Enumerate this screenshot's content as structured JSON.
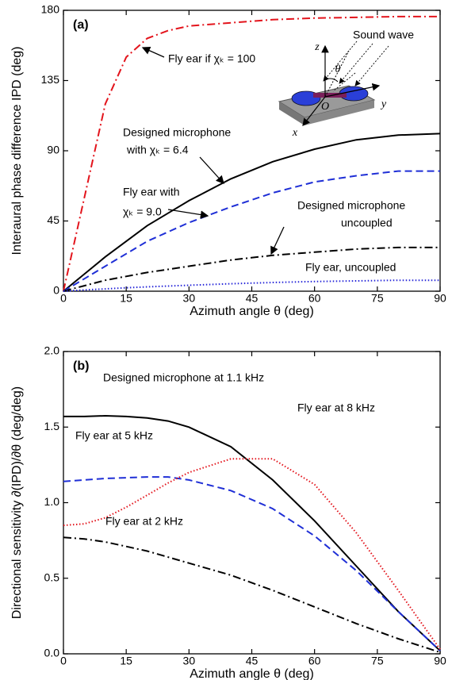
{
  "chart_data": [
    {
      "type": "line",
      "panel": "(a)",
      "x_label": "Azimuth angle θ (deg)",
      "y_label": "Interaural phase difference IPD (deg)",
      "xlim": [
        0,
        90
      ],
      "xticks": [
        0,
        15,
        30,
        45,
        60,
        75,
        90
      ],
      "ylim": [
        0,
        180
      ],
      "yticks": [
        0,
        45,
        90,
        135,
        180
      ],
      "x": [
        0,
        5,
        10,
        15,
        20,
        25,
        30,
        40,
        50,
        60,
        70,
        80,
        90
      ],
      "series": [
        {
          "label": [
            "Fly ear if χₖ = 100"
          ],
          "color": "#e3141c",
          "linestyle": "dash-dot",
          "values": [
            0,
            60,
            120,
            150,
            162,
            167,
            170,
            172,
            174,
            175,
            175.5,
            176,
            176
          ]
        },
        {
          "label": [
            "Designed microphone",
            "with χₖ = 6.4"
          ],
          "color": "#000000",
          "linestyle": "solid",
          "values": [
            0,
            11,
            22,
            32,
            42,
            50,
            58,
            72,
            83,
            91,
            97,
            100,
            101
          ]
        },
        {
          "label": [
            "Fly ear with",
            "χₖ = 9.0"
          ],
          "color": "#1f2fd6",
          "linestyle": "dash",
          "values": [
            0,
            8,
            16,
            24,
            32,
            38,
            44,
            54,
            63,
            70,
            74,
            77,
            77
          ]
        },
        {
          "label": [
            "Designed microphone",
            "uncoupled"
          ],
          "color": "#000000",
          "linestyle": "dash-dot",
          "values": [
            0,
            3.5,
            7,
            9.5,
            12,
            14,
            16,
            20,
            23,
            25,
            27,
            28,
            28
          ]
        },
        {
          "label": [
            "Fly ear, uncoupled"
          ],
          "color": "#2626d9",
          "linestyle": "dotted",
          "values": [
            0,
            0.8,
            1.5,
            2.2,
            2.8,
            3.3,
            3.8,
            4.8,
            5.6,
            6.2,
            6.6,
            7,
            7
          ]
        }
      ],
      "inset_labels": [
        "Sound wave",
        "z",
        "y",
        "x",
        "O",
        "θ"
      ]
    },
    {
      "type": "line",
      "panel": "(b)",
      "x_label": "Azimuth angle θ (deg)",
      "y_label": "Directional sensitivity ∂(IPD)/∂θ (deg/deg)",
      "xlim": [
        0,
        90
      ],
      "xticks": [
        0,
        15,
        30,
        45,
        60,
        75,
        90
      ],
      "ylim": [
        0,
        2
      ],
      "yticks": [
        {
          "value": 0,
          "label": "0.0"
        },
        0.5,
        {
          "value": 1,
          "label": "1.0"
        },
        1.5,
        {
          "value": 2,
          "label": "2.0"
        }
      ],
      "x": [
        0,
        5,
        10,
        15,
        20,
        25,
        30,
        40,
        50,
        60,
        70,
        80,
        90
      ],
      "series": [
        {
          "label": [
            "Designed microphone at 1.1 kHz"
          ],
          "color": "#000000",
          "linestyle": "solid",
          "values": [
            1.57,
            1.57,
            1.575,
            1.57,
            1.56,
            1.54,
            1.5,
            1.37,
            1.15,
            0.88,
            0.58,
            0.28,
            0.02
          ]
        },
        {
          "label": [
            "Fly ear at 5 kHz"
          ],
          "color": "#1f2fd6",
          "linestyle": "dash",
          "values": [
            1.14,
            1.15,
            1.16,
            1.165,
            1.17,
            1.17,
            1.15,
            1.08,
            0.96,
            0.78,
            0.55,
            0.28,
            0.02
          ]
        },
        {
          "label": [
            "Fly ear at 8 kHz"
          ],
          "color": "#e3141c",
          "linestyle": "dotted",
          "values": [
            0.85,
            0.86,
            0.9,
            0.97,
            1.05,
            1.13,
            1.2,
            1.29,
            1.29,
            1.12,
            0.8,
            0.42,
            0.03
          ]
        },
        {
          "label": [
            "Fly ear at 2 kHz"
          ],
          "color": "#000000",
          "linestyle": "dash-dot",
          "values": [
            0.77,
            0.76,
            0.74,
            0.71,
            0.68,
            0.64,
            0.6,
            0.52,
            0.42,
            0.31,
            0.2,
            0.1,
            0.01
          ]
        }
      ]
    }
  ]
}
